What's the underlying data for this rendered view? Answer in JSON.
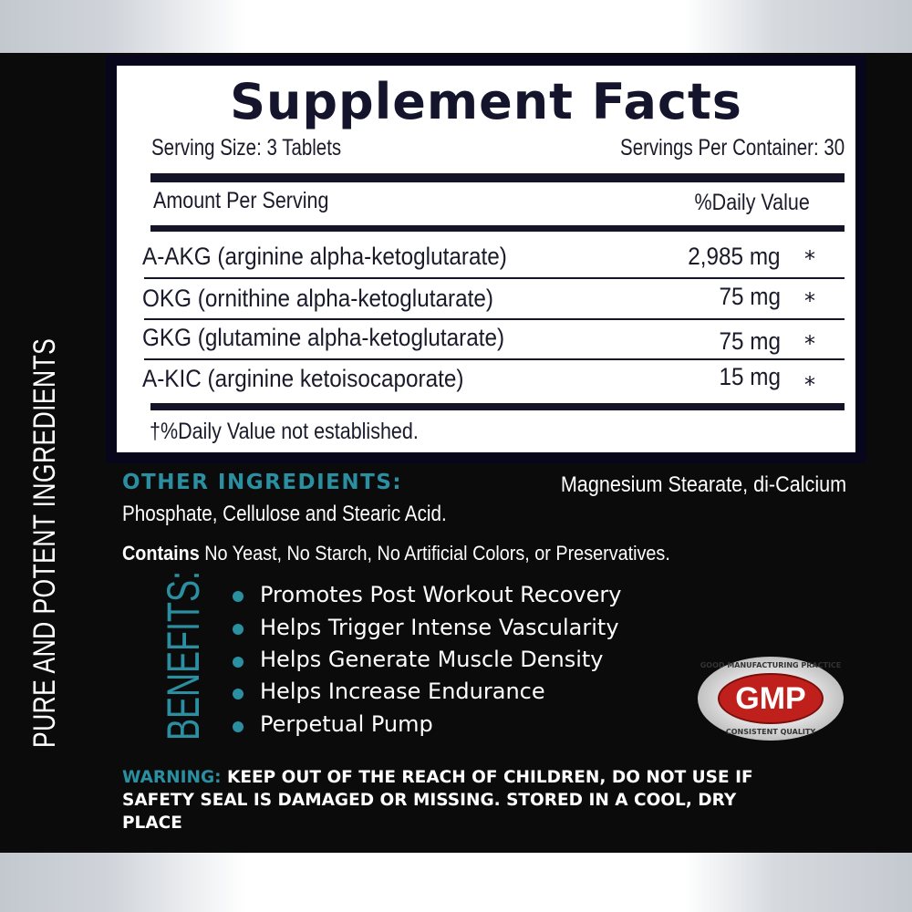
{
  "side_text": "PURE AND POTENT INGREDIENTS",
  "facts": {
    "title": "Supplement Facts",
    "serving_size": "Serving Size: 3 Tablets",
    "servings_per_container": "Servings Per Container: 30",
    "amount_header": "Amount Per Serving",
    "dv_header": "%Daily Value",
    "rows": [
      {
        "name": "A-AKG (arginine alpha-ketoglutarate)",
        "amount": "2,985 mg",
        "dv": "*"
      },
      {
        "name": "OKG (ornithine alpha-ketoglutarate)",
        "amount": "75 mg",
        "dv": "*"
      },
      {
        "name": "GKG (glutamine alpha-ketoglutarate)",
        "amount": "75 mg",
        "dv": "*"
      },
      {
        "name": "A-KIC (arginine ketoisocaporate)",
        "amount": "15 mg",
        "dv": "*"
      }
    ],
    "footnote": "†%Daily Value not established."
  },
  "other_ingredients": {
    "label": "OTHER INGREDIENTS:",
    "line1": "Magnesium Stearate, di-Calcium",
    "line2": "Phosphate, Cellulose and Stearic Acid."
  },
  "contains": {
    "label": "Contains",
    "text": "No Yeast, No Starch, No Artificial Colors, or Preservatives."
  },
  "benefits": {
    "label": "BENEFITS:",
    "items": [
      "Promotes Post Workout Recovery",
      "Helps Trigger Intense Vascularity",
      "Helps Generate Muscle Density",
      "Helps Increase Endurance",
      "Perpetual Pump"
    ]
  },
  "gmp": {
    "logo": "GMP",
    "top_text": "GOOD MANUFACTURING PRACTICE",
    "bottom_text": "CONSISTENT QUALITY"
  },
  "warning": {
    "label": "WARNING:",
    "line1": "KEEP OUT OF THE REACH OF CHILDREN, DO NOT USE IF",
    "line2": "SAFETY SEAL IS DAMAGED OR MISSING. STORED IN A COOL, DRY",
    "line3": "PLACE"
  },
  "colors": {
    "accent": "#2a8fa0",
    "navy": "#141428",
    "background": "#0b0b0c",
    "gmp_red": "#c0201c"
  }
}
